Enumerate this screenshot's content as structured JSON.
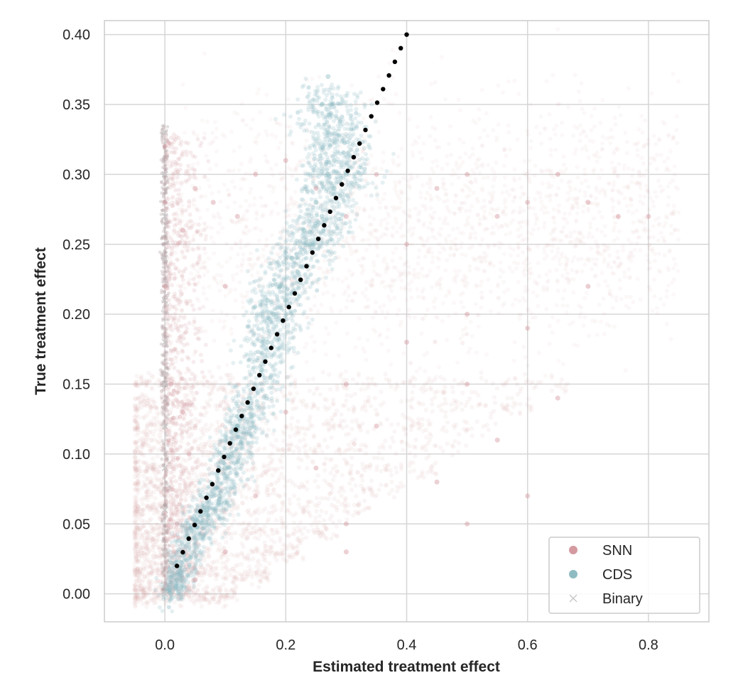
{
  "chart_data": {
    "type": "scatter",
    "xlabel": "Estimated treatment effect",
    "ylabel": "True treatment effect",
    "xlim": [
      -0.1,
      0.9
    ],
    "ylim": [
      -0.02,
      0.41
    ],
    "x_ticks": [
      0.0,
      0.2,
      0.4,
      0.6,
      0.8
    ],
    "y_ticks": [
      0.0,
      0.05,
      0.1,
      0.15,
      0.2,
      0.25,
      0.3,
      0.35,
      0.4
    ],
    "x_tick_labels": [
      "0.0",
      "0.2",
      "0.4",
      "0.6",
      "0.8"
    ],
    "y_tick_labels": [
      "0.00",
      "0.05",
      "0.10",
      "0.15",
      "0.20",
      "0.25",
      "0.30",
      "0.35",
      "0.40"
    ],
    "grid": true,
    "legend_position": "bottom-right",
    "series": [
      {
        "name": "SNN",
        "marker": "circle",
        "color": "#d49aa0",
        "summary": "diffuse cloud: x from 0.0 to 0.85, y from 0.0 to 0.33; dense column near x = 0",
        "points": [
          [
            0.0,
            0.32
          ],
          [
            0.0,
            0.28
          ],
          [
            0.0,
            0.22
          ],
          [
            0.01,
            0.15
          ],
          [
            0.03,
            0.26
          ],
          [
            0.05,
            0.29
          ],
          [
            0.08,
            0.28
          ],
          [
            0.1,
            0.22
          ],
          [
            0.12,
            0.27
          ],
          [
            0.15,
            0.3
          ],
          [
            0.2,
            0.31
          ],
          [
            0.25,
            0.29
          ],
          [
            0.3,
            0.27
          ],
          [
            0.35,
            0.3
          ],
          [
            0.4,
            0.25
          ],
          [
            0.45,
            0.29
          ],
          [
            0.5,
            0.3
          ],
          [
            0.55,
            0.27
          ],
          [
            0.6,
            0.28
          ],
          [
            0.65,
            0.3
          ],
          [
            0.7,
            0.28
          ],
          [
            0.75,
            0.27
          ],
          [
            0.8,
            0.27
          ],
          [
            0.4,
            0.18
          ],
          [
            0.5,
            0.2
          ],
          [
            0.6,
            0.19
          ],
          [
            0.7,
            0.22
          ],
          [
            0.3,
            0.15
          ],
          [
            0.5,
            0.15
          ],
          [
            0.65,
            0.14
          ],
          [
            0.2,
            0.13
          ],
          [
            0.35,
            0.12
          ],
          [
            0.55,
            0.11
          ],
          [
            0.25,
            0.09
          ],
          [
            0.45,
            0.08
          ],
          [
            0.6,
            0.07
          ],
          [
            0.15,
            0.07
          ],
          [
            0.3,
            0.05
          ],
          [
            0.5,
            0.05
          ],
          [
            0.1,
            0.03
          ],
          [
            0.3,
            0.03
          ],
          [
            0.05,
            0.01
          ],
          [
            0.02,
            0.05
          ],
          [
            0.04,
            0.1
          ],
          [
            0.03,
            0.13
          ]
        ]
      },
      {
        "name": "CDS",
        "marker": "circle",
        "color": "#8fbcc2",
        "summary": "tight band along the diagonal: x from 0.0 to 0.32, y from 0.0 to 0.38",
        "points": [
          [
            0.01,
            0.0
          ],
          [
            0.02,
            0.01
          ],
          [
            0.04,
            0.04
          ],
          [
            0.05,
            0.05
          ],
          [
            0.07,
            0.06
          ],
          [
            0.09,
            0.07
          ],
          [
            0.1,
            0.09
          ],
          [
            0.11,
            0.1
          ],
          [
            0.12,
            0.12
          ],
          [
            0.14,
            0.14
          ],
          [
            0.16,
            0.16
          ],
          [
            0.17,
            0.18
          ],
          [
            0.18,
            0.2
          ],
          [
            0.17,
            0.21
          ],
          [
            0.2,
            0.21
          ],
          [
            0.19,
            0.22
          ],
          [
            0.22,
            0.23
          ],
          [
            0.21,
            0.24
          ],
          [
            0.24,
            0.25
          ],
          [
            0.23,
            0.26
          ],
          [
            0.26,
            0.27
          ],
          [
            0.25,
            0.28
          ],
          [
            0.28,
            0.29
          ],
          [
            0.27,
            0.3
          ],
          [
            0.3,
            0.3
          ],
          [
            0.28,
            0.31
          ],
          [
            0.27,
            0.33
          ],
          [
            0.26,
            0.35
          ],
          [
            0.27,
            0.37
          ]
        ]
      },
      {
        "name": "Binary",
        "marker": "x",
        "color": "#c9c9c9",
        "summary": "vertical column at x = 0.0, y from 0.0 to 0.33",
        "points": [
          [
            0.0,
            0.0
          ],
          [
            0.0,
            0.03
          ],
          [
            0.0,
            0.06
          ],
          [
            0.0,
            0.09
          ],
          [
            0.0,
            0.12
          ],
          [
            0.0,
            0.15
          ],
          [
            0.0,
            0.18
          ],
          [
            0.0,
            0.21
          ],
          [
            0.0,
            0.24
          ],
          [
            0.0,
            0.27
          ],
          [
            0.0,
            0.3
          ],
          [
            0.0,
            0.33
          ]
        ]
      },
      {
        "name": "",
        "marker": "dot",
        "color": "#000000",
        "summary": "reference diagonal y = x from 0.02 to 0.4",
        "points": [
          [
            0.02,
            0.02
          ],
          [
            0.04,
            0.04
          ],
          [
            0.06,
            0.06
          ],
          [
            0.08,
            0.08
          ],
          [
            0.1,
            0.1
          ],
          [
            0.12,
            0.12
          ],
          [
            0.14,
            0.14
          ],
          [
            0.16,
            0.16
          ],
          [
            0.18,
            0.18
          ],
          [
            0.2,
            0.2
          ],
          [
            0.22,
            0.22
          ],
          [
            0.24,
            0.24
          ],
          [
            0.26,
            0.26
          ],
          [
            0.28,
            0.28
          ],
          [
            0.3,
            0.3
          ],
          [
            0.32,
            0.32
          ],
          [
            0.34,
            0.34
          ],
          [
            0.36,
            0.36
          ],
          [
            0.38,
            0.38
          ],
          [
            0.4,
            0.4
          ]
        ]
      }
    ],
    "legend": [
      {
        "label": "SNN",
        "marker": "circle",
        "color": "#d49aa0"
      },
      {
        "label": "CDS",
        "marker": "circle",
        "color": "#8fbcc2"
      },
      {
        "label": "Binary",
        "marker": "x",
        "color": "#c9c9c9"
      }
    ]
  }
}
